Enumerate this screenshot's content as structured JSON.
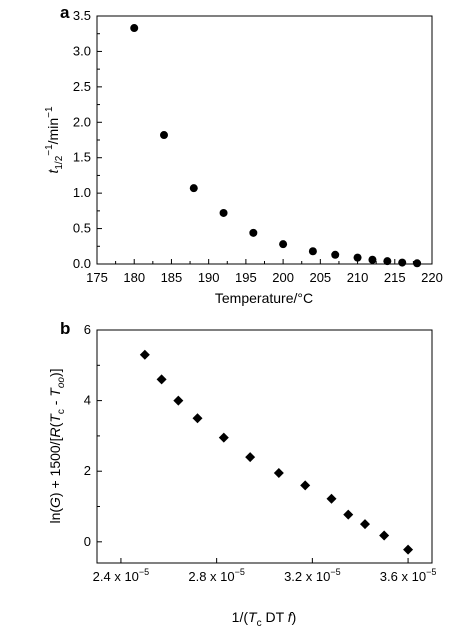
{
  "chart_data": [
    {
      "panel_label": "a",
      "type": "scatter",
      "marker": "circle",
      "marker_color": "#000000",
      "xlabel": "Temperature/°C",
      "ylabel_parts": {
        "t": "t",
        "sub": "1/2",
        "sup": "−1",
        "rest": "/min",
        "sup2": "−1"
      },
      "xlim": [
        175,
        220
      ],
      "ylim": [
        0,
        3.5
      ],
      "xticks": [
        175,
        180,
        185,
        190,
        195,
        200,
        205,
        210,
        215,
        220
      ],
      "xtick_labels": [
        "175",
        "180",
        "185",
        "190",
        "195",
        "200",
        "205",
        "210",
        "215",
        "220"
      ],
      "yticks": [
        0,
        0.5,
        1.0,
        1.5,
        2.0,
        2.5,
        3.0,
        3.5
      ],
      "ytick_labels": [
        "0.0",
        "0.5",
        "1.0",
        "1.5",
        "2.0",
        "2.5",
        "3.0",
        "3.5"
      ],
      "grid": false,
      "x": [
        180,
        184,
        188,
        192,
        196,
        200,
        204,
        207,
        210,
        212,
        214,
        216,
        218
      ],
      "y": [
        3.33,
        1.82,
        1.07,
        0.72,
        0.44,
        0.28,
        0.18,
        0.13,
        0.09,
        0.06,
        0.04,
        0.02,
        0.01
      ]
    },
    {
      "panel_label": "b",
      "type": "scatter",
      "marker": "diamond",
      "marker_color": "#000000",
      "xlabel_parts": {
        "pre": "1/(",
        "T": "T",
        "sub": "c",
        "rest": " DT ",
        "f": "f",
        "post": ")"
      },
      "ylabel_parts": {
        "pre": "ln(",
        "G": "G",
        "mid": ") + 1500/[",
        "R": "R",
        "open": "(",
        "T1": "T",
        "c": "c",
        "dash": " - ",
        "T2": "T",
        "oo": "oo",
        "post": ")]"
      },
      "xlim": [
        2.3e-05,
        3.7e-05
      ],
      "ylim": [
        -0.6,
        6
      ],
      "xticks": [
        2.4e-05,
        2.8e-05,
        3.2e-05,
        3.6e-05
      ],
      "xtick_labels": [
        {
          "mant": "2.4 x 10",
          "exp": "−5"
        },
        {
          "mant": "2.8 x 10",
          "exp": "−5"
        },
        {
          "mant": "3.2 x 10",
          "exp": "−5"
        },
        {
          "mant": "3.6 x 10",
          "exp": "−5"
        }
      ],
      "yticks": [
        0,
        2,
        4,
        6
      ],
      "ytick_labels": [
        "0",
        "2",
        "4",
        "6"
      ],
      "grid": false,
      "x": [
        2.5e-05,
        2.57e-05,
        2.64e-05,
        2.72e-05,
        2.83e-05,
        2.94e-05,
        3.06e-05,
        3.17e-05,
        3.28e-05,
        3.35e-05,
        3.42e-05,
        3.5e-05,
        3.6e-05
      ],
      "y": [
        5.3,
        4.6,
        4.0,
        3.5,
        2.95,
        2.4,
        1.95,
        1.6,
        1.22,
        0.77,
        0.5,
        0.18,
        -0.22
      ]
    }
  ]
}
